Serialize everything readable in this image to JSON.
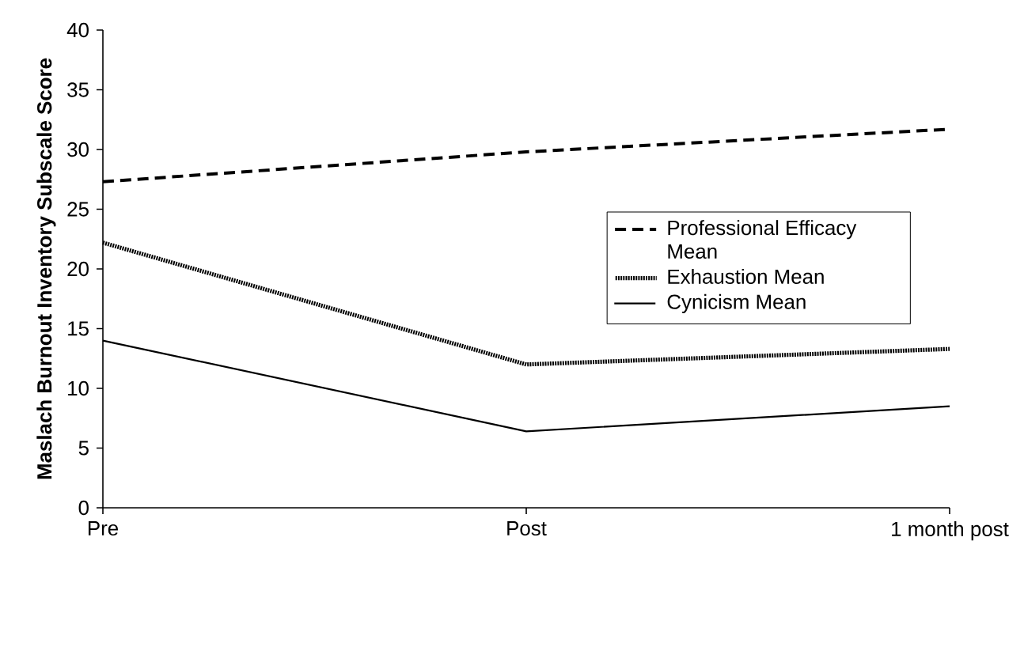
{
  "chart_data": {
    "type": "line",
    "ylabel": "Maslach Burnout Inventory Subscale Score",
    "categories": [
      "Pre",
      "Post",
      "1 month post"
    ],
    "series": [
      {
        "name": "Professional Efficacy Mean",
        "color": "#000000",
        "line_style": "dashed",
        "values": [
          27.3,
          29.8,
          31.7
        ]
      },
      {
        "name": "Exhaustion Mean",
        "color": "#000000",
        "line_style": "dotted",
        "values": [
          22.2,
          12.0,
          13.3
        ]
      },
      {
        "name": "Cynicism Mean",
        "color": "#000000",
        "line_style": "solid",
        "values": [
          14.0,
          6.4,
          8.5
        ]
      }
    ],
    "ylim": [
      0,
      40
    ],
    "yticks": [
      0,
      5,
      10,
      15,
      20,
      25,
      30,
      35,
      40
    ],
    "legend": "right",
    "grid": false,
    "marker": "none"
  }
}
